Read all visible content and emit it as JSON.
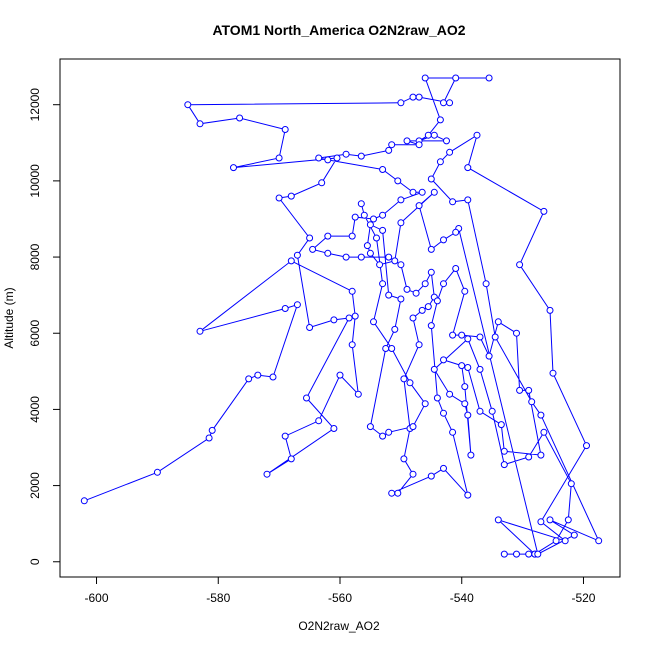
{
  "chart_data": {
    "type": "scatter",
    "title": "ATOM1 North_America O2N2raw_AO2",
    "xlabel": "O2N2raw_AO2",
    "ylabel": "Altitude (m)",
    "xlim": [
      -606,
      -514
    ],
    "ylim": [
      -400,
      13200
    ],
    "xticks": [
      -600,
      -580,
      -560,
      -540,
      -520
    ],
    "yticks": [
      0,
      2000,
      4000,
      6000,
      8000,
      10000,
      12000
    ],
    "grid": false,
    "legend": "none",
    "connected": true,
    "color": "#0000ff",
    "points": [
      [
        -602,
        1600
      ],
      [
        -590,
        2350
      ],
      [
        -581.5,
        3250
      ],
      [
        -581,
        3450
      ],
      [
        -575,
        4800
      ],
      [
        -573.5,
        4900
      ],
      [
        -571,
        4850
      ],
      [
        -567,
        6750
      ],
      [
        -569,
        6650
      ],
      [
        -583,
        6050
      ],
      [
        -568,
        7900
      ],
      [
        -558,
        7100
      ],
      [
        -557.5,
        6450
      ],
      [
        -558,
        5700
      ],
      [
        -557,
        4400
      ],
      [
        -560,
        4900
      ],
      [
        -563.5,
        3700
      ],
      [
        -569,
        3300
      ],
      [
        -568,
        2700
      ],
      [
        -572,
        2300
      ],
      [
        -561,
        3500
      ],
      [
        -565.5,
        4300
      ],
      [
        -558.5,
        6400
      ],
      [
        -561,
        6350
      ],
      [
        -565,
        6150
      ],
      [
        -567,
        8050
      ],
      [
        -565,
        8500
      ],
      [
        -570,
        9550
      ],
      [
        -568,
        9600
      ],
      [
        -563,
        9950
      ],
      [
        -560.5,
        10600
      ],
      [
        -577.5,
        10350
      ],
      [
        -570,
        10600
      ],
      [
        -569,
        11350
      ],
      [
        -576.5,
        11650
      ],
      [
        -583,
        11500
      ],
      [
        -585,
        12000
      ],
      [
        -550,
        12050
      ],
      [
        -548,
        12200
      ],
      [
        -547,
        12200
      ],
      [
        -542,
        12050
      ],
      [
        -543,
        12050
      ],
      [
        -541,
        12700
      ],
      [
        -535.5,
        12700
      ],
      [
        -546,
        12700
      ],
      [
        -543.5,
        11600
      ],
      [
        -545.5,
        11200
      ],
      [
        -547,
        11050
      ],
      [
        -544.5,
        11200
      ],
      [
        -542.5,
        11050
      ],
      [
        -549,
        11050
      ],
      [
        -547,
        10950
      ],
      [
        -551.5,
        10950
      ],
      [
        -552,
        10800
      ],
      [
        -556.5,
        10650
      ],
      [
        -559,
        10700
      ],
      [
        -563.5,
        10600
      ],
      [
        -562,
        10550
      ],
      [
        -553,
        10300
      ],
      [
        -550.5,
        10000
      ],
      [
        -548,
        9700
      ],
      [
        -546.5,
        9700
      ],
      [
        -550,
        9500
      ],
      [
        -553,
        9100
      ],
      [
        -554.5,
        9000
      ],
      [
        -557.5,
        9050
      ],
      [
        -558,
        8550
      ],
      [
        -562,
        8550
      ],
      [
        -564.5,
        8200
      ],
      [
        -562,
        8100
      ],
      [
        -559,
        8000
      ],
      [
        -556.5,
        8000
      ],
      [
        -552,
        8000
      ],
      [
        -550,
        7800
      ],
      [
        -549,
        7150
      ],
      [
        -547.5,
        7050
      ],
      [
        -546,
        7300
      ],
      [
        -545,
        7600
      ],
      [
        -544.5,
        6950
      ],
      [
        -545.5,
        6700
      ],
      [
        -546.5,
        6600
      ],
      [
        -548,
        6400
      ],
      [
        -547,
        5700
      ],
      [
        -549.5,
        4800
      ],
      [
        -548.5,
        3500
      ],
      [
        -549.5,
        2700
      ],
      [
        -548,
        2300
      ],
      [
        -550.5,
        1800
      ],
      [
        -551.5,
        1800
      ],
      [
        -545,
        2250
      ],
      [
        -543,
        2450
      ],
      [
        -539,
        1750
      ],
      [
        -541.5,
        3400
      ],
      [
        -543,
        3900
      ],
      [
        -544,
        4300
      ],
      [
        -545,
        6200
      ],
      [
        -544,
        6850
      ],
      [
        -543,
        7300
      ],
      [
        -541,
        7700
      ],
      [
        -539.5,
        7100
      ],
      [
        -541.5,
        5950
      ],
      [
        -540,
        5950
      ],
      [
        -537,
        5900
      ],
      [
        -535.5,
        5400
      ],
      [
        -534,
        6300
      ],
      [
        -531,
        6000
      ],
      [
        -530.5,
        4500
      ],
      [
        -529,
        4500
      ],
      [
        -527,
        2800
      ],
      [
        -533,
        2900
      ],
      [
        -533.5,
        3600
      ],
      [
        -537,
        3950
      ],
      [
        -539,
        5100
      ],
      [
        -543,
        5300
      ],
      [
        -540,
        5150
      ],
      [
        -539.5,
        4600
      ],
      [
        -538.5,
        2800
      ],
      [
        -539,
        3850
      ],
      [
        -539.5,
        4150
      ],
      [
        -542,
        4400
      ],
      [
        -544.5,
        5050
      ],
      [
        -539,
        5850
      ],
      [
        -537,
        5050
      ],
      [
        -535,
        3950
      ],
      [
        -533,
        2550
      ],
      [
        -529,
        2750
      ],
      [
        -526.5,
        3400
      ],
      [
        -522,
        2050
      ],
      [
        -522.5,
        1100
      ],
      [
        -524.5,
        550
      ],
      [
        -528,
        200
      ],
      [
        -529,
        200
      ],
      [
        -531,
        200
      ],
      [
        -533,
        200
      ],
      [
        -528,
        200
      ],
      [
        -534,
        1100
      ],
      [
        -523,
        550
      ],
      [
        -527,
        1050
      ],
      [
        -519.5,
        3050
      ],
      [
        -525,
        4950
      ],
      [
        -525.5,
        6600
      ],
      [
        -530.5,
        7800
      ],
      [
        -526.5,
        9200
      ],
      [
        -539,
        10350
      ],
      [
        -537.5,
        11200
      ],
      [
        -542,
        10750
      ],
      [
        -543.5,
        10500
      ],
      [
        -545,
        10050
      ],
      [
        -541.5,
        9450
      ],
      [
        -539,
        9500
      ],
      [
        -536,
        7300
      ],
      [
        -534.5,
        5900
      ],
      [
        -528.5,
        4200
      ],
      [
        -527,
        3850
      ],
      [
        -517.5,
        550
      ],
      [
        -525.5,
        1100
      ],
      [
        -521.5,
        700
      ],
      [
        -527.5,
        200
      ],
      [
        -540.5,
        8750
      ],
      [
        -541,
        8650
      ],
      [
        -543,
        8450
      ],
      [
        -545,
        8200
      ],
      [
        -547,
        9350
      ],
      [
        -544.5,
        9700
      ],
      [
        -550,
        8900
      ],
      [
        -551,
        7900
      ],
      [
        -553.5,
        7800
      ],
      [
        -555,
        8100
      ],
      [
        -555.5,
        8300
      ],
      [
        -555,
        8850
      ],
      [
        -553,
        8700
      ],
      [
        -552,
        7000
      ],
      [
        -550,
        6900
      ],
      [
        -551,
        6100
      ],
      [
        -552.5,
        5600
      ],
      [
        -555,
        3550
      ],
      [
        -553,
        3300
      ],
      [
        -552,
        3400
      ],
      [
        -548,
        3550
      ],
      [
        -546,
        4150
      ],
      [
        -548.5,
        4700
      ],
      [
        -551.5,
        5600
      ],
      [
        -554.5,
        6300
      ],
      [
        -553,
        7300
      ],
      [
        -554,
        8500
      ],
      [
        -556,
        9100
      ],
      [
        -556.5,
        9400
      ]
    ]
  }
}
